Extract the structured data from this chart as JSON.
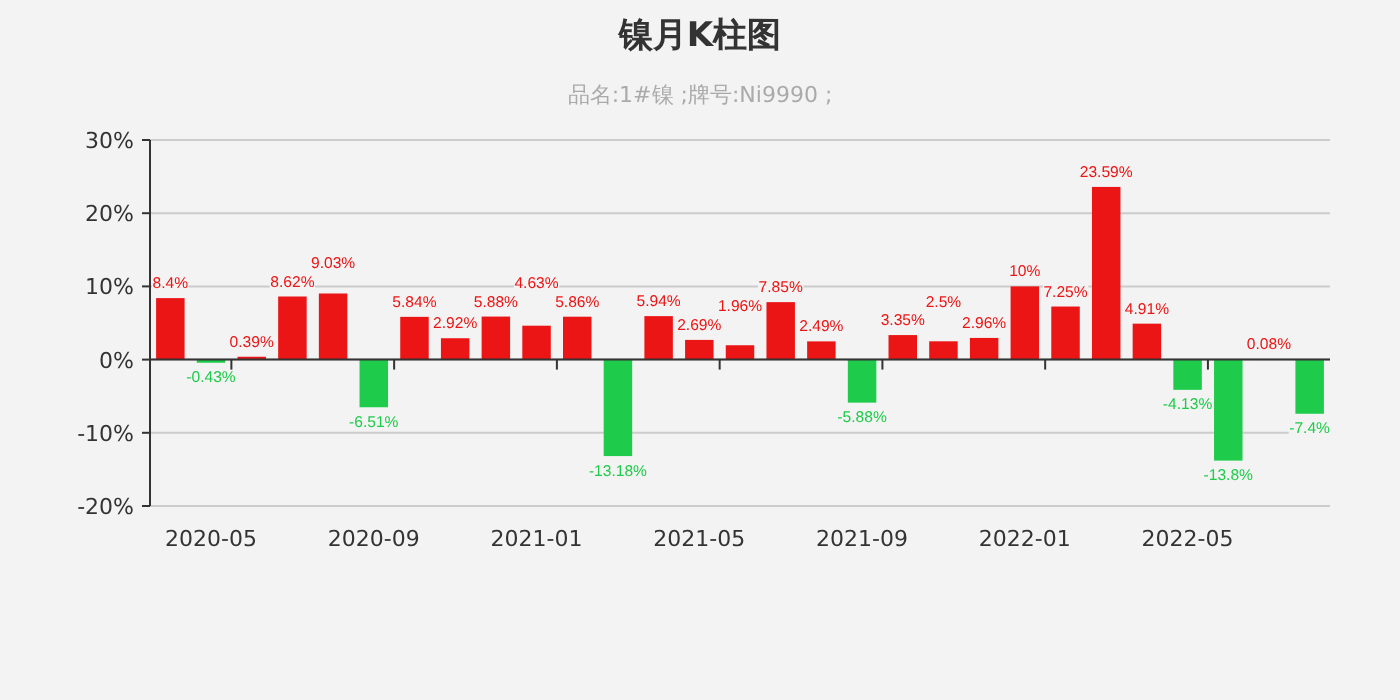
{
  "chart_data": {
    "type": "bar",
    "title": "镍月K柱图",
    "subtitle": "品名:1#镍 ;牌号:Ni9990 ;",
    "categories": [
      null,
      "2020-05",
      null,
      null,
      null,
      "2020-09",
      null,
      null,
      null,
      "2021-01",
      null,
      null,
      null,
      "2021-05",
      null,
      null,
      null,
      "2021-09",
      null,
      null,
      null,
      "2022-01",
      null,
      null,
      null,
      "2022-05",
      null,
      null,
      null
    ],
    "values": [
      8.4,
      -0.43,
      0.39,
      8.62,
      9.03,
      -6.51,
      5.84,
      2.92,
      5.88,
      4.63,
      5.86,
      -13.18,
      5.94,
      2.69,
      1.96,
      7.85,
      2.49,
      -5.88,
      3.35,
      2.5,
      2.96,
      10,
      7.25,
      23.59,
      4.91,
      -4.13,
      -13.8,
      0.08,
      -7.4
    ],
    "value_labels": [
      "8.4%",
      "-0.43%",
      "0.39%",
      "8.62%",
      "9.03%",
      "-6.51%",
      "5.84%",
      "2.92%",
      "5.88%",
      "4.63%",
      "5.86%",
      "-13.18%",
      "5.94%",
      "2.69%",
      "1.96%",
      "7.85%",
      "2.49%",
      "-5.88%",
      "3.35%",
      "2.5%",
      "2.96%",
      "10%",
      "7.25%",
      "23.59%",
      "4.91%",
      "-4.13%",
      "-13.8%",
      "0.08%",
      "-7.4%"
    ],
    "colors": [
      "#ec1515",
      "#1fcb4a",
      "#ec1515",
      "#ec1515",
      "#ec1515",
      "#1fcb4a",
      "#ec1515",
      "#ec1515",
      "#ec1515",
      "#ec1515",
      "#ec1515",
      "#1fcb4a",
      "#ec1515",
      "#ec1515",
      "#ec1515",
      "#ec1515",
      "#ec1515",
      "#1fcb4a",
      "#ec1515",
      "#ec1515",
      "#ec1515",
      "#ec1515",
      "#ec1515",
      "#ec1515",
      "#ec1515",
      "#1fcb4a",
      "#1fcb4a",
      "#ec1515",
      "#1fcb4a"
    ],
    "ylim": [
      -20,
      30
    ],
    "yticks": [
      {
        "value": -20,
        "label": "-20%"
      },
      {
        "value": -10,
        "label": "-10%"
      },
      {
        "value": 0,
        "label": "0%"
      },
      {
        "value": 10,
        "label": "10%"
      },
      {
        "value": 20,
        "label": "20%"
      },
      {
        "value": 30,
        "label": "30%"
      }
    ],
    "grid": "y"
  }
}
